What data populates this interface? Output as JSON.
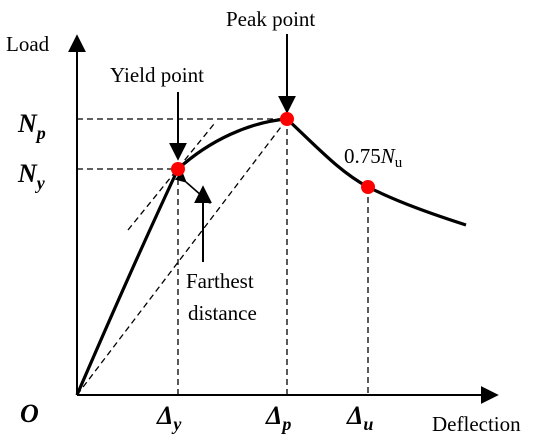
{
  "axes": {
    "y_label": "Load",
    "x_label": "Deflection",
    "origin": "O"
  },
  "load_ticks": {
    "np": {
      "main": "N",
      "sub": "p"
    },
    "ny": {
      "main": "N",
      "sub": "y"
    }
  },
  "deflection_ticks": {
    "dy": {
      "main": "Δ",
      "sub": "y"
    },
    "dp": {
      "main": "Δ",
      "sub": "p"
    },
    "du": {
      "main": "Δ",
      "sub": "u"
    }
  },
  "annotations": {
    "peak": "Peak point",
    "yield": "Yield point",
    "farthest_line1": "Farthest",
    "farthest_line2": "distance",
    "ultimate_prefix": "0.75",
    "ultimate_main": "N",
    "ultimate_sub": "u"
  },
  "colors": {
    "point": "#ff0000",
    "line": "#000000"
  }
}
